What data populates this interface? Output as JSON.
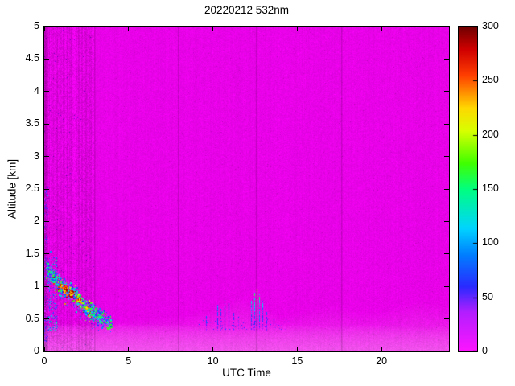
{
  "chart_data": {
    "type": "heatmap",
    "title": "20220212 532nm",
    "xlabel": "UTC Time",
    "ylabel": "Altitude [km]",
    "xlim": [
      0,
      24
    ],
    "ylim": [
      0,
      5
    ],
    "xticks": [
      0,
      5,
      10,
      15,
      20
    ],
    "yticks": [
      0,
      0.5,
      1,
      1.5,
      2,
      2.5,
      3,
      3.5,
      4,
      4.5,
      5
    ],
    "colorbar": {
      "min": 0,
      "max": 300,
      "ticks": [
        0,
        50,
        100,
        150,
        200,
        250,
        300
      ],
      "stops": [
        [
          0.0,
          "#ff14ff"
        ],
        [
          0.12,
          "#b41eff"
        ],
        [
          0.2,
          "#2a2aff"
        ],
        [
          0.3,
          "#0080ff"
        ],
        [
          0.38,
          "#00d4ff"
        ],
        [
          0.5,
          "#00ff80"
        ],
        [
          0.58,
          "#40ff00"
        ],
        [
          0.68,
          "#d8ff00"
        ],
        [
          0.75,
          "#ffd800"
        ],
        [
          0.85,
          "#ff4000"
        ],
        [
          0.93,
          "#d00000"
        ],
        [
          1.0,
          "#700000"
        ]
      ]
    },
    "background": {
      "base_color": "#e802e8",
      "light_color": "#f795ef",
      "pixel_noise": 0.1,
      "dense_region": {
        "t_end": 2.95,
        "pixel_noise": 0.22,
        "column_noise": 0.16,
        "darken": 0.96
      }
    },
    "surface_layer": {
      "band_top_km": 0.42,
      "profile": [
        [
          0,
          0.44
        ],
        [
          3,
          0.46
        ],
        [
          5,
          0.5
        ],
        [
          8,
          0.55
        ],
        [
          10,
          0.68
        ],
        [
          11.5,
          0.85
        ],
        [
          13,
          0.7
        ],
        [
          14,
          0.55
        ],
        [
          15,
          0.6
        ],
        [
          17,
          0.72
        ],
        [
          19,
          0.6
        ],
        [
          20,
          0.63
        ],
        [
          22,
          0.78
        ],
        [
          24,
          0.72
        ]
      ]
    },
    "artifact_lines_utc": [
      2.95,
      7.9,
      12.55,
      17.6
    ],
    "aerosol_layer": {
      "t_range": [
        0.1,
        3.95
      ],
      "path": [
        [
          0.15,
          1.3
        ],
        [
          0.7,
          1.1
        ],
        [
          1.2,
          0.98
        ],
        [
          1.8,
          0.88
        ],
        [
          2.4,
          0.7
        ],
        [
          3.0,
          0.58
        ],
        [
          3.6,
          0.5
        ],
        [
          3.95,
          0.46
        ]
      ],
      "spread_km": 0.17,
      "count": 2600,
      "cores": [
        {
          "t": 0.95,
          "alt": 1.02,
          "rt": 0.1,
          "ra": 0.05,
          "n": 45,
          "vmin": 200,
          "vmax": 300
        },
        {
          "t": 1.2,
          "alt": 0.96,
          "rt": 0.16,
          "ra": 0.07,
          "n": 90,
          "vmin": 220,
          "vmax": 300
        },
        {
          "t": 1.55,
          "alt": 0.9,
          "rt": 0.14,
          "ra": 0.06,
          "n": 70,
          "vmin": 200,
          "vmax": 300
        },
        {
          "t": 2.05,
          "alt": 0.8,
          "rt": 0.16,
          "ra": 0.06,
          "n": 60,
          "vmin": 180,
          "vmax": 290
        },
        {
          "t": 2.5,
          "alt": 0.68,
          "rt": 0.12,
          "ra": 0.05,
          "n": 35,
          "vmin": 150,
          "vmax": 260
        }
      ],
      "curtains": [
        {
          "t_range": [
            0.0,
            0.18
          ],
          "alt_range": [
            0.15,
            2.55
          ],
          "count": 260,
          "v_range": [
            8,
            70
          ]
        },
        {
          "t_range": [
            0.2,
            0.75
          ],
          "alt_range": [
            0.32,
            1.45
          ],
          "count": 300,
          "v_range": [
            15,
            150
          ]
        }
      ],
      "outliers": [
        [
          0.1,
          2.48,
          70
        ],
        [
          0.18,
          2.4,
          110
        ],
        [
          0.28,
          2.35,
          60
        ],
        [
          0.12,
          1.92,
          80
        ],
        [
          0.35,
          1.55,
          95
        ],
        [
          0.55,
          1.45,
          55
        ],
        [
          3.1,
          1.05,
          45
        ],
        [
          3.4,
          0.85,
          40
        ],
        [
          3.75,
          0.55,
          60
        ],
        [
          4.0,
          0.5,
          45
        ]
      ]
    },
    "spikes": {
      "base_km": 0.33,
      "items": [
        {
          "t": 9.6,
          "top": 0.55,
          "v": 70
        },
        {
          "t": 10.25,
          "top": 0.72,
          "v": 90
        },
        {
          "t": 10.45,
          "top": 0.66,
          "v": 75
        },
        {
          "t": 10.7,
          "top": 0.8,
          "v": 105
        },
        {
          "t": 10.95,
          "top": 0.74,
          "v": 85
        },
        {
          "t": 11.2,
          "top": 0.6,
          "v": 70
        },
        {
          "t": 11.5,
          "top": 0.55,
          "v": 60
        },
        {
          "t": 12.25,
          "top": 0.82,
          "v": 120
        },
        {
          "t": 12.45,
          "top": 0.9,
          "v": 150
        },
        {
          "t": 12.6,
          "top": 0.95,
          "v": 210
        },
        {
          "t": 12.75,
          "top": 0.88,
          "v": 160
        },
        {
          "t": 12.95,
          "top": 0.78,
          "v": 110
        },
        {
          "t": 13.15,
          "top": 0.62,
          "v": 80
        },
        {
          "t": 13.6,
          "top": 0.5,
          "v": 55
        }
      ]
    },
    "low_speckle": {
      "t_range": [
        9,
        14.5
      ],
      "alt_range": [
        0.34,
        0.5
      ],
      "count": 60,
      "v_range": [
        25,
        80
      ]
    }
  }
}
